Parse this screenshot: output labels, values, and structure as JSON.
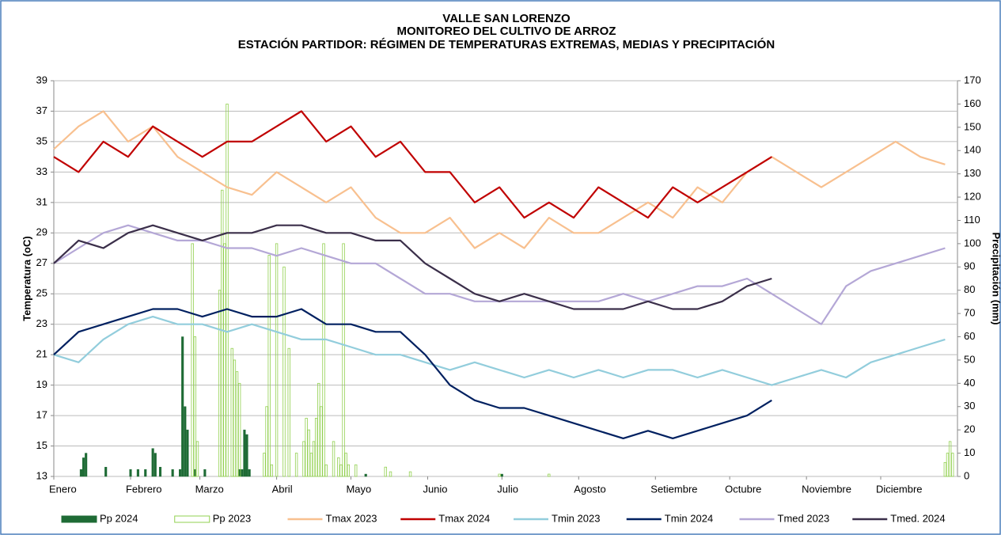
{
  "chart_data": {
    "type": "combo",
    "title": "VALLE SAN LORENZO",
    "subtitle": "MONITOREO DEL CULTIVO DE ARROZ",
    "subtitle2": "ESTACIÓN PARTIDOR: RÉGIMEN DE TEMPERATURAS EXTREMAS, MEDIAS Y PRECIPITACIÓN",
    "y_label": "Temperatura (oC)",
    "y2_label": "Precipitación (mm)",
    "xlim": [
      0,
      365
    ],
    "xticks": [
      {
        "value": 0,
        "label": "Enero"
      },
      {
        "value": 31,
        "label": "Febrero"
      },
      {
        "value": 59,
        "label": "Marzo"
      },
      {
        "value": 90,
        "label": "Abril"
      },
      {
        "value": 120,
        "label": "Mayo"
      },
      {
        "value": 151,
        "label": "Junio"
      },
      {
        "value": 181,
        "label": "Julio"
      },
      {
        "value": 212,
        "label": "Agosto"
      },
      {
        "value": 243,
        "label": "Setiembre"
      },
      {
        "value": 273,
        "label": "Octubre"
      },
      {
        "value": 304,
        "label": "Noviembre"
      },
      {
        "value": 334,
        "label": "Diciembre"
      }
    ],
    "ylim": [
      13,
      39
    ],
    "yticks": [
      13,
      15,
      17,
      19,
      21,
      23,
      25,
      27,
      29,
      31,
      33,
      35,
      37,
      39
    ],
    "y2lim": [
      0,
      170
    ],
    "y2ticks": [
      0,
      10,
      20,
      30,
      40,
      50,
      60,
      70,
      80,
      90,
      100,
      110,
      120,
      130,
      140,
      150,
      160,
      170
    ],
    "grid": true,
    "legend": "bottom",
    "x": [
      0,
      10,
      20,
      30,
      40,
      50,
      60,
      70,
      80,
      90,
      100,
      110,
      120,
      130,
      140,
      150,
      160,
      170,
      180,
      190,
      200,
      210,
      220,
      230,
      240,
      250,
      260,
      270,
      280,
      290,
      300,
      310,
      320,
      330,
      340,
      350,
      360
    ],
    "series": [
      {
        "name": "Pp 2024",
        "type": "bar",
        "axis": "y2",
        "color": "#1e6b35",
        "x": [
          11,
          12,
          13,
          21,
          31,
          34,
          37,
          40,
          41,
          43,
          48,
          51,
          52,
          53,
          54,
          57,
          61,
          75,
          76,
          77,
          78,
          79,
          126,
          181
        ],
        "values": [
          3,
          8,
          10,
          4,
          3,
          3,
          3,
          12,
          10,
          4,
          3,
          3,
          60,
          30,
          20,
          3,
          3,
          3,
          3,
          20,
          18,
          3,
          1,
          1
        ]
      },
      {
        "name": "Pp 2023",
        "type": "bar",
        "axis": "y2",
        "color": "#92d050",
        "x": [
          56,
          57,
          58,
          67,
          68,
          69,
          70,
          72,
          73,
          74,
          75,
          85,
          86,
          87,
          88,
          90,
          93,
          95,
          98,
          101,
          102,
          103,
          104,
          105,
          106,
          107,
          108,
          109,
          110,
          113,
          115,
          116,
          117,
          118,
          119,
          122,
          134,
          136,
          144,
          180,
          200,
          360,
          361,
          362,
          363
        ],
        "values": [
          100,
          60,
          15,
          80,
          123,
          100,
          160,
          55,
          50,
          45,
          40,
          10,
          30,
          95,
          5,
          100,
          90,
          55,
          10,
          15,
          25,
          20,
          10,
          15,
          25,
          40,
          30,
          100,
          5,
          15,
          8,
          5,
          100,
          10,
          5,
          5,
          4,
          2,
          2,
          1,
          1,
          6,
          10,
          15,
          10
        ]
      },
      {
        "name": "Tmax 2023",
        "type": "line",
        "color": "#f8c08f",
        "values": [
          34.5,
          36,
          37,
          35,
          36,
          34,
          33,
          32,
          31.5,
          33,
          32,
          31,
          32,
          30,
          29,
          29,
          30,
          28,
          29,
          28,
          30,
          29,
          29,
          30,
          31,
          30,
          32,
          31,
          33,
          34,
          33,
          32,
          33,
          34,
          35,
          34,
          33.5
        ]
      },
      {
        "name": "Tmax 2024",
        "type": "line",
        "color": "#c00000",
        "values": [
          34,
          33,
          35,
          34,
          36,
          35,
          34,
          35,
          35,
          36,
          37,
          35,
          36,
          34,
          35,
          33,
          33,
          31,
          32,
          30,
          31,
          30,
          32,
          31,
          30,
          32,
          31,
          32,
          33,
          34,
          null,
          null,
          null,
          null,
          null,
          null,
          null
        ]
      },
      {
        "name": "Tmin 2023",
        "type": "line",
        "color": "#92cddc",
        "values": [
          21,
          20.5,
          22,
          23,
          23.5,
          23,
          23,
          22.5,
          23,
          22.5,
          22,
          22,
          21.5,
          21,
          21,
          20.5,
          20,
          20.5,
          20,
          19.5,
          20,
          19.5,
          20,
          19.5,
          20,
          20,
          19.5,
          20,
          19.5,
          19,
          19.5,
          20,
          19.5,
          20.5,
          21,
          21.5,
          22
        ]
      },
      {
        "name": "Tmin 2024",
        "type": "line",
        "color": "#002060",
        "values": [
          21,
          22.5,
          23,
          23.5,
          24,
          24,
          23.5,
          24,
          23.5,
          23.5,
          24,
          23,
          23,
          22.5,
          22.5,
          21,
          19,
          18,
          17.5,
          17.5,
          17,
          16.5,
          16,
          15.5,
          16,
          15.5,
          16,
          16.5,
          17,
          18,
          null,
          null,
          null,
          null,
          null,
          null,
          null
        ]
      },
      {
        "name": "Tmed 2023",
        "type": "line",
        "color": "#b4a7d6",
        "values": [
          27,
          28,
          29,
          29.5,
          29,
          28.5,
          28.5,
          28,
          28,
          27.5,
          28,
          27.5,
          27,
          27,
          26,
          25,
          25,
          24.5,
          24.5,
          24.5,
          24.5,
          24.5,
          24.5,
          25,
          24.5,
          25,
          25.5,
          25.5,
          26,
          25,
          24,
          23,
          25.5,
          26.5,
          27,
          27.5,
          28
        ]
      },
      {
        "name": "Tmed. 2024",
        "type": "line",
        "color": "#3b2f4a",
        "values": [
          27,
          28.5,
          28,
          29,
          29.5,
          29,
          28.5,
          29,
          29,
          29.5,
          29.5,
          29,
          29,
          28.5,
          28.5,
          27,
          26,
          25,
          24.5,
          25,
          24.5,
          24,
          24,
          24,
          24.5,
          24,
          24,
          24.5,
          25.5,
          26,
          null,
          null,
          null,
          null,
          null,
          null,
          null
        ]
      }
    ]
  }
}
